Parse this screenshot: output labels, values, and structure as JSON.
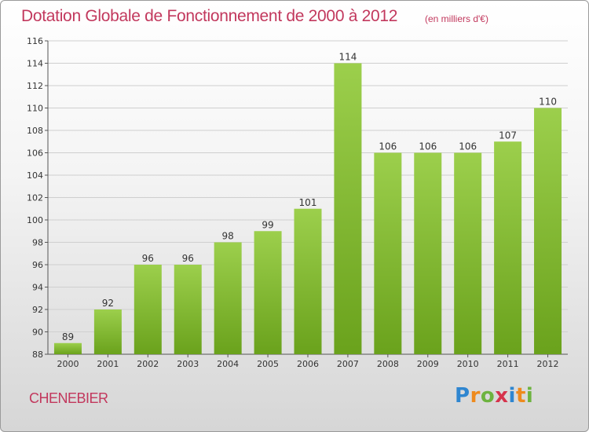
{
  "header": {
    "title": "Dotation Globale de Fonctionnement de 2000 à 2012",
    "unit_note": "(en milliers d'€)"
  },
  "footer": {
    "commune": "CHENEBIER",
    "logo": {
      "letters": [
        "P",
        "r",
        "o",
        "x",
        "i",
        "t",
        "i"
      ],
      "colors": [
        "#2f86d0",
        "#ee8a1d",
        "#6db33f",
        "#d6334c",
        "#2f86d0",
        "#ee8a1d",
        "#6db33f"
      ]
    }
  },
  "colors": {
    "bar_light": "#9ccf4c",
    "bar_dark": "#6aa21c",
    "title": "#c2385d"
  },
  "chart_data": {
    "type": "bar",
    "title": "Dotation Globale de Fonctionnement de 2000 à 2012",
    "subtitle": "(en milliers d'€)",
    "categories": [
      "2000",
      "2001",
      "2002",
      "2003",
      "2004",
      "2005",
      "2006",
      "2007",
      "2008",
      "2009",
      "2010",
      "2011",
      "2012"
    ],
    "values": [
      89,
      92,
      96,
      96,
      98,
      99,
      101,
      114,
      106,
      106,
      106,
      107,
      110
    ],
    "ylim": [
      88,
      116
    ],
    "yticks": [
      88,
      90,
      92,
      94,
      96,
      98,
      100,
      102,
      104,
      106,
      108,
      110,
      112,
      114,
      116
    ],
    "grid": true,
    "legend": "none"
  }
}
